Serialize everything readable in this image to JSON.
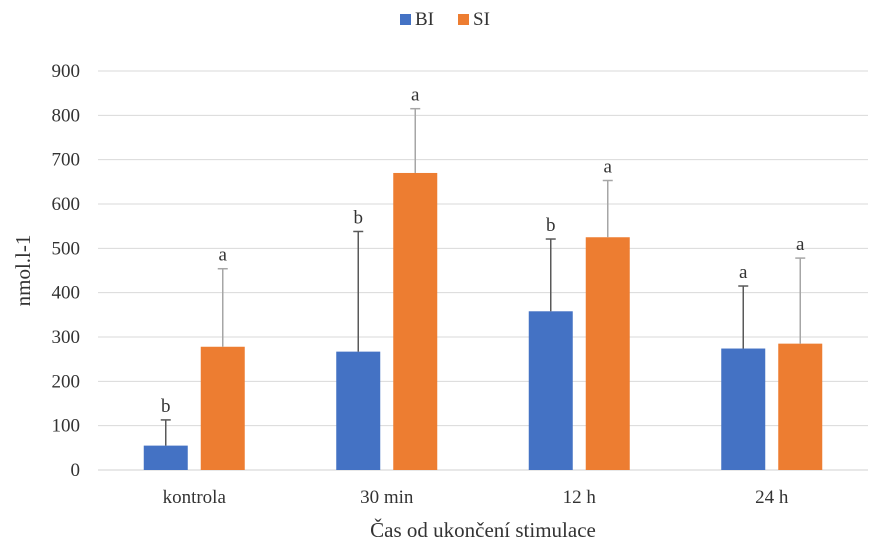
{
  "chart_data": {
    "type": "bar",
    "title": "",
    "xlabel": "Čas od ukončení stimulace",
    "ylabel": "nmol.l-1",
    "ylim": [
      0,
      900
    ],
    "yticks": [
      0,
      100,
      200,
      300,
      400,
      500,
      600,
      700,
      800,
      900
    ],
    "grid": true,
    "legend_position": "top",
    "categories": [
      "kontrola",
      "30 min",
      "12 h",
      "24 h"
    ],
    "series": [
      {
        "name": "BI",
        "color": "#4472C4",
        "values": [
          55,
          267,
          358,
          274
        ],
        "error_upper": [
          113,
          538,
          521,
          415
        ],
        "labels": [
          "b",
          "b",
          "b",
          "a"
        ]
      },
      {
        "name": "SI",
        "color": "#ED7D31",
        "values": [
          278,
          670,
          525,
          285
        ],
        "error_upper": [
          454,
          815,
          653,
          478
        ],
        "labels": [
          "a",
          "a",
          "a",
          "a"
        ]
      }
    ]
  }
}
